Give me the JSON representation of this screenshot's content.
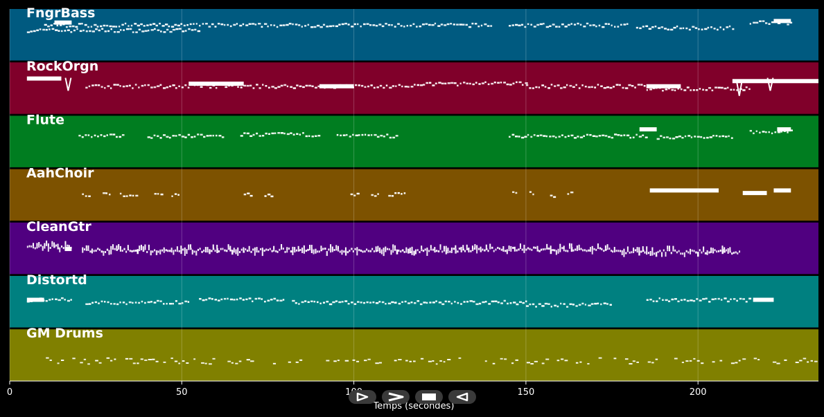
{
  "chart_data": {
    "type": "piano-roll",
    "xlabel": "Temps (secondes)",
    "xlim": [
      0,
      235
    ],
    "x_ticks": [
      0,
      50,
      100,
      150,
      200
    ],
    "grid": true,
    "tracks": [
      {
        "name": "FngrBass",
        "color": "#005a80",
        "segments": [
          [
            5,
            55,
            0.6
          ],
          [
            10,
            140,
            0.7
          ],
          [
            145,
            180,
            0.7
          ],
          [
            182,
            210,
            0.65
          ],
          [
            215,
            227,
            0.75
          ]
        ],
        "sustained": [
          [
            13,
            18,
            0.75
          ],
          [
            222,
            227,
            0.78
          ]
        ]
      },
      {
        "name": "RockOrgn",
        "color": "#80002a",
        "segments": [
          [
            22,
            120,
            0.55
          ],
          [
            120,
            150,
            0.6
          ],
          [
            150,
            185,
            0.55
          ],
          [
            185,
            215,
            0.5
          ]
        ],
        "sustained": [
          [
            5,
            15,
            0.7
          ],
          [
            52,
            68,
            0.6
          ],
          [
            90,
            100,
            0.55
          ],
          [
            185,
            195,
            0.55
          ],
          [
            210,
            235,
            0.65
          ]
        ],
        "spikes": [
          [
            17,
            0.7,
            0.25
          ],
          [
            212,
            0.65,
            0.3
          ],
          [
            221,
            0.7,
            0.25
          ]
        ]
      },
      {
        "name": "Flute",
        "color": "#007d20",
        "segments": [
          [
            20,
            33,
            0.62
          ],
          [
            40,
            62,
            0.62
          ],
          [
            67,
            90,
            0.65
          ],
          [
            95,
            113,
            0.62
          ],
          [
            145,
            185,
            0.62
          ],
          [
            188,
            210,
            0.6
          ],
          [
            215,
            227,
            0.7
          ]
        ],
        "sustained": [
          [
            183,
            188,
            0.75
          ],
          [
            223,
            227,
            0.75
          ]
        ]
      },
      {
        "name": "AahChoir",
        "color": "#7d5200",
        "segments": [
          [
            21,
            23,
            0.52
          ],
          [
            27,
            29,
            0.52
          ],
          [
            32,
            37,
            0.52
          ],
          [
            42,
            44,
            0.52
          ],
          [
            47,
            49,
            0.52
          ],
          [
            68,
            70,
            0.52
          ],
          [
            74,
            76,
            0.52
          ],
          [
            99,
            101,
            0.52
          ],
          [
            105,
            107,
            0.52
          ],
          [
            110,
            115,
            0.52
          ],
          [
            146,
            147,
            0.55
          ],
          [
            151,
            152,
            0.55
          ],
          [
            157,
            158,
            0.5
          ],
          [
            162,
            163,
            0.55
          ]
        ],
        "sustained": [
          [
            186,
            206,
            0.6
          ],
          [
            213,
            220,
            0.55
          ],
          [
            222,
            227,
            0.6
          ]
        ]
      },
      {
        "name": "CleanGtr",
        "color": "#500080",
        "segments": [
          [
            5,
            18,
            0.55
          ],
          [
            21,
            135,
            0.48
          ],
          [
            135,
            175,
            0.5
          ],
          [
            175,
            212,
            0.45
          ]
        ],
        "sustained": [
          [
            16,
            18,
            0.5
          ]
        ],
        "dense": true
      },
      {
        "name": "Distortd",
        "color": "#008080",
        "segments": [
          [
            5,
            18,
            0.55
          ],
          [
            22,
            52,
            0.5
          ],
          [
            55,
            80,
            0.55
          ],
          [
            82,
            112,
            0.5
          ],
          [
            112,
            150,
            0.5
          ],
          [
            150,
            175,
            0.45
          ],
          [
            185,
            215,
            0.55
          ]
        ],
        "sustained": [
          [
            5,
            10,
            0.55
          ],
          [
            216,
            222,
            0.55
          ]
        ]
      },
      {
        "name": "GM Drums",
        "color": "#808000",
        "segments": [
          [
            5,
            235,
            0.4
          ]
        ],
        "sparse": true
      }
    ]
  },
  "transport": {
    "play_label": "▷",
    "forward_label": "≫",
    "stop_label": "■",
    "rewind_label": "◁"
  }
}
